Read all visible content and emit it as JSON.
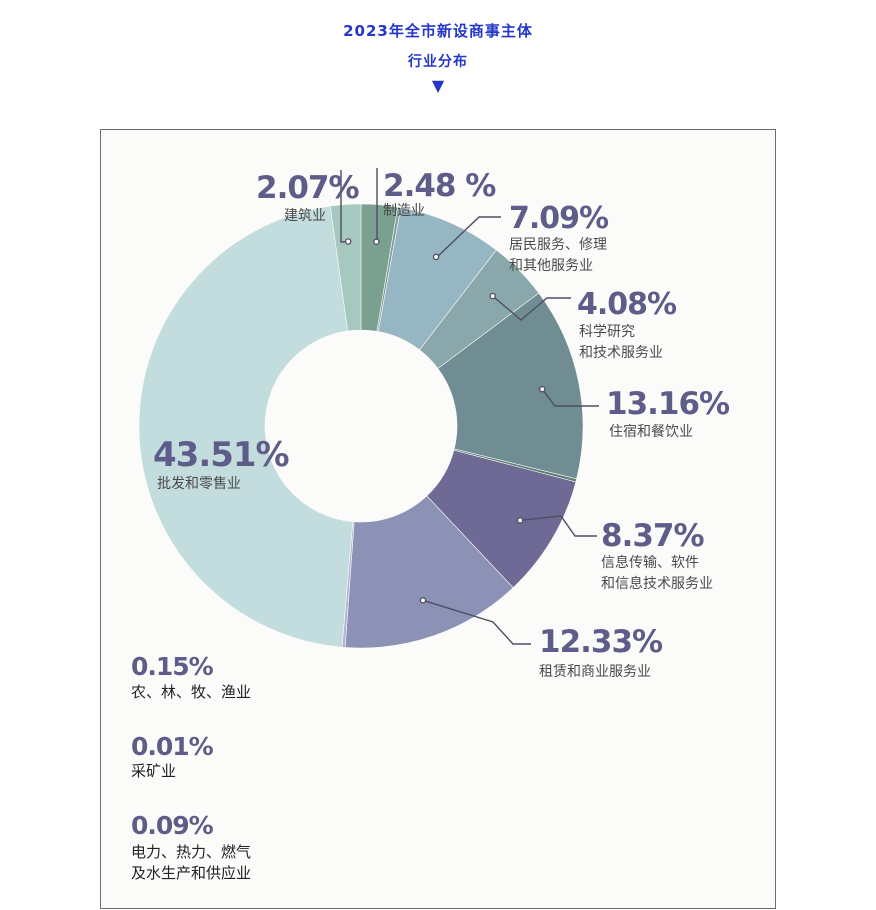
{
  "header": {
    "title_line1": "2023年全市新设商事主体",
    "title_line2": "行业分布",
    "arrow": "▼"
  },
  "chart_data": {
    "type": "pie",
    "style": "donut",
    "categories": [
      "制造业",
      "居民服务、修理和其他服务业",
      "科学研究和技术服务业",
      "住宿和餐饮业",
      "信息传输、软件和信息技术服务业",
      "租赁和商业服务业",
      "批发和零售业",
      "建筑业",
      "农、林、牧、渔业",
      "采矿业",
      "电力、热力、燃气及水生产和供应业"
    ],
    "values": [
      2.48,
      7.09,
      4.08,
      13.16,
      8.37,
      12.33,
      43.51,
      2.07,
      0.15,
      0.01,
      0.09
    ],
    "value_labels": [
      "2.48 %",
      "7.09%",
      "4.08%",
      "13.16%",
      "8.37%",
      "12.33%",
      "43.51%",
      "2.07%",
      "0.15%",
      "0.01%",
      "0.09%"
    ],
    "colors": [
      "#7aa090",
      "#96b6c3",
      "#8aa8ab",
      "#6f8d93",
      "#6e6a95",
      "#8c91b6",
      "#c3dcdd",
      "#a5c8bf",
      "#b0b3d4",
      "#5d7f72",
      "#7e9fa0"
    ],
    "category_lines": [
      [
        "制造业"
      ],
      [
        "居民服务、修理",
        "和其他服务业"
      ],
      [
        "科学研究",
        "和技术服务业"
      ],
      [
        "住宿和餐饮业"
      ],
      [
        "信息传输、软件",
        "和信息技术服务业"
      ],
      [
        "租赁和商业服务业"
      ],
      [
        "批发和零售业"
      ],
      [
        "建筑业"
      ],
      [
        "农、林、牧、渔业"
      ],
      [
        "采矿业"
      ],
      [
        "电力、热力、燃气",
        "及水生产和供应业"
      ]
    ]
  }
}
